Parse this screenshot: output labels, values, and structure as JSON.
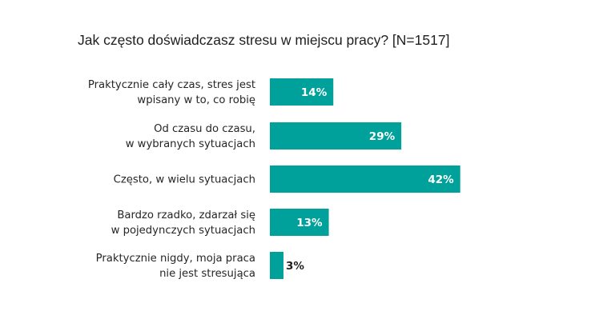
{
  "chart_data": {
    "type": "bar",
    "orientation": "horizontal",
    "title": "Jak często doświadczasz stresu w miejscu pracy? [N=1517]",
    "categories": [
      [
        "Praktycznie cały czas, stres jest",
        "wpisany w to, co robię"
      ],
      [
        "Od czasu do czasu,",
        "w wybranych sytuacjach"
      ],
      [
        "Często, w wielu  sytuacjach"
      ],
      [
        "Bardzo rzadko, zdarzał się",
        "w pojedynczych sytuacjach"
      ],
      [
        "Praktycznie nigdy, moja praca",
        "nie jest stresująca"
      ]
    ],
    "values": [
      14,
      29,
      42,
      13,
      3
    ],
    "value_labels": [
      "14%",
      "29%",
      "42%",
      "13%",
      "3%"
    ],
    "unit": "%",
    "xlim": [
      0,
      100
    ],
    "grid": false,
    "legend": "none",
    "colors": {
      "bar": "#00a19a",
      "label_inside": "#ffffff",
      "label_outside": "#1f1f1f"
    }
  }
}
